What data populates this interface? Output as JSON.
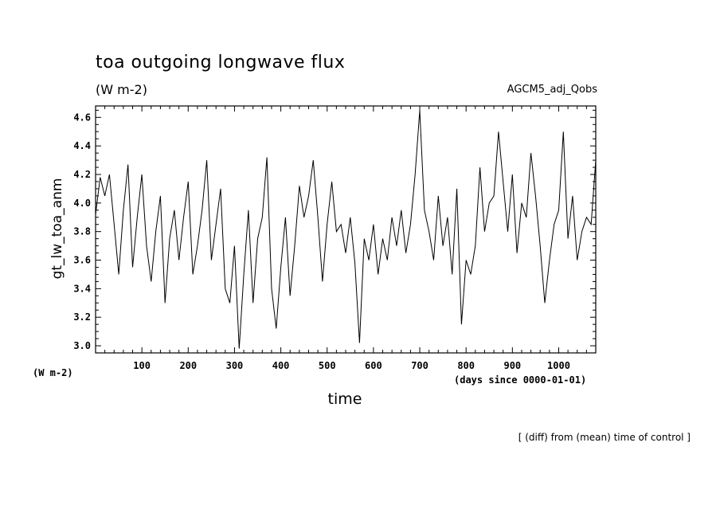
{
  "chart_data": {
    "type": "line",
    "title": "toa outgoing longwave flux",
    "units": "(W m-2)",
    "dataset": "AGCM5_adj_Qobs",
    "ylabel": "gt_lw_toa_anm",
    "xlabel": "time",
    "x_units": "(days since 0000-01-01)",
    "y_units_left": "(W m-2)",
    "note": "[ (diff) from (mean) time of control ]",
    "xlim": [
      0,
      1080
    ],
    "ylim": [
      2.95,
      4.68
    ],
    "xticks": [
      100,
      200,
      300,
      400,
      500,
      600,
      700,
      800,
      900,
      1000
    ],
    "yticks": [
      3.0,
      3.2,
      3.4,
      3.6,
      3.8,
      4.0,
      4.2,
      4.4,
      4.6
    ],
    "ytick_labels": [
      "3.0",
      "3.2",
      "3.4",
      "3.6",
      "3.8",
      "4.0",
      "4.2",
      "4.4",
      "4.6"
    ],
    "series": [
      {
        "x": [
          0,
          10,
          20,
          30,
          40,
          50,
          60,
          70,
          80,
          90,
          100,
          110,
          120,
          130,
          140,
          150,
          160,
          170,
          180,
          190,
          200,
          210,
          220,
          230,
          240,
          250,
          260,
          270,
          280,
          290,
          300,
          310,
          320,
          330,
          340,
          350,
          360,
          370,
          380,
          390,
          400,
          410,
          420,
          430,
          440,
          450,
          460,
          470,
          480,
          490,
          500,
          510,
          520,
          530,
          540,
          550,
          560,
          570,
          580,
          590,
          600,
          610,
          620,
          630,
          640,
          650,
          660,
          670,
          680,
          690,
          700,
          710,
          720,
          730,
          740,
          750,
          760,
          770,
          780,
          790,
          800,
          810,
          820,
          830,
          840,
          850,
          860,
          870,
          880,
          890,
          900,
          910,
          920,
          930,
          940,
          950,
          960,
          970,
          980,
          990,
          1000,
          1010,
          1020,
          1030,
          1040,
          1050,
          1060,
          1070,
          1080
        ],
        "values": [
          3.92,
          4.18,
          4.05,
          4.2,
          3.85,
          3.5,
          3.95,
          4.27,
          3.55,
          3.9,
          4.2,
          3.7,
          3.45,
          3.8,
          4.05,
          3.3,
          3.75,
          3.95,
          3.6,
          3.9,
          4.15,
          3.5,
          3.7,
          3.95,
          4.3,
          3.6,
          3.85,
          4.1,
          3.4,
          3.3,
          3.7,
          2.98,
          3.5,
          3.95,
          3.3,
          3.75,
          3.9,
          4.32,
          3.4,
          3.12,
          3.55,
          3.9,
          3.35,
          3.7,
          4.12,
          3.9,
          4.05,
          4.3,
          3.9,
          3.45,
          3.85,
          4.15,
          3.8,
          3.85,
          3.65,
          3.9,
          3.58,
          3.02,
          3.75,
          3.6,
          3.85,
          3.5,
          3.75,
          3.6,
          3.9,
          3.7,
          3.95,
          3.65,
          3.85,
          4.2,
          4.65,
          3.95,
          3.8,
          3.6,
          4.05,
          3.7,
          3.9,
          3.5,
          4.1,
          3.15,
          3.6,
          3.5,
          3.7,
          4.25,
          3.8,
          4.0,
          4.05,
          4.5,
          4.15,
          3.8,
          4.2,
          3.65,
          4.0,
          3.9,
          4.35,
          4.05,
          3.7,
          3.3,
          3.6,
          3.85,
          3.95,
          4.5,
          3.75,
          4.05,
          3.6,
          3.8,
          3.9,
          3.85,
          4.3
        ]
      }
    ]
  }
}
